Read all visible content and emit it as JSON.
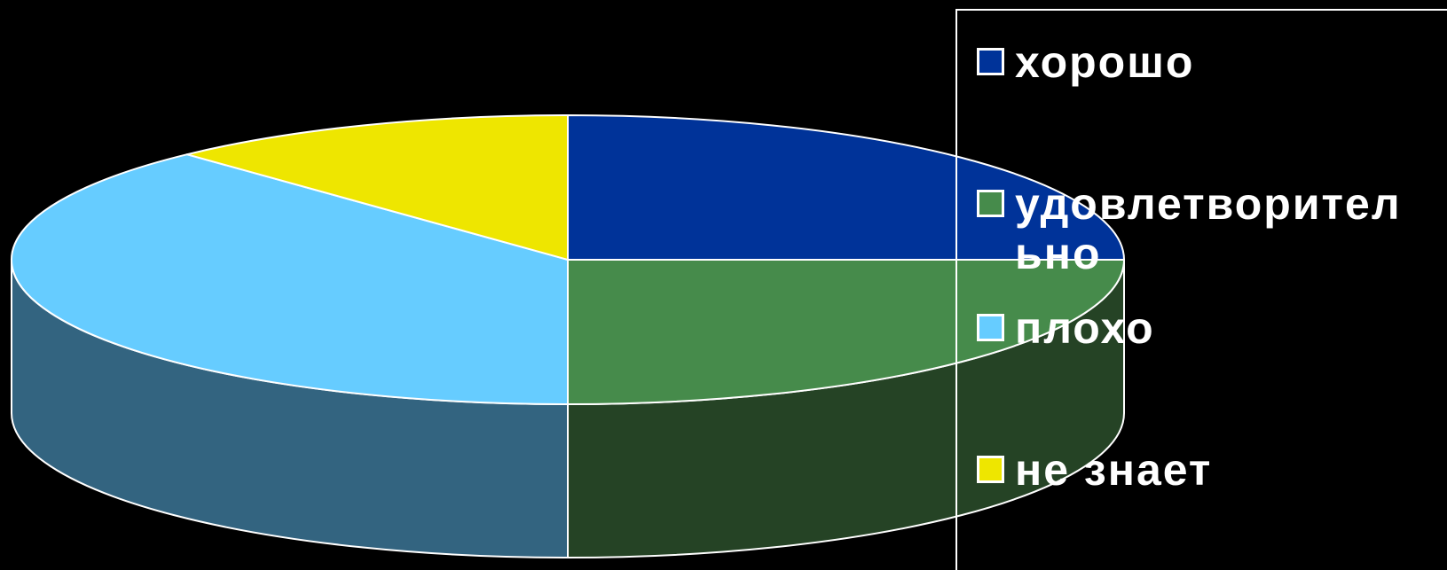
{
  "chart_data": {
    "type": "pie",
    "style": "3d",
    "title": "",
    "legend_position": "right",
    "series": [
      {
        "categories": [
          "хорошо",
          "удовлетворительно",
          "плохо",
          "не знает"
        ],
        "values": [
          25,
          25,
          38,
          12
        ],
        "colors": [
          "#003399",
          "#468b4b",
          "#66ccff",
          "#eee600"
        ],
        "side_colors": [
          "#002266",
          "#254325",
          "#336480",
          "#807a00"
        ]
      }
    ]
  },
  "legend": {
    "items": [
      {
        "label": "хорошо",
        "color": "#003399"
      },
      {
        "label": "удовлетворительно",
        "color": "#468b4b"
      },
      {
        "label": "плохо",
        "color": "#66ccff"
      },
      {
        "label": "не знает",
        "color": "#eee600"
      }
    ]
  }
}
